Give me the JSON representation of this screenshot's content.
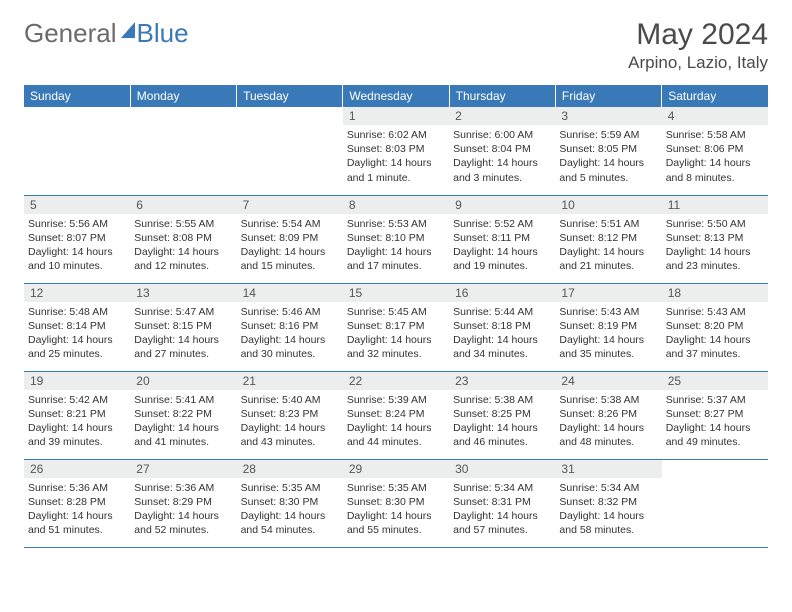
{
  "logo": {
    "general": "General",
    "blue": "Blue"
  },
  "title": "May 2024",
  "location": "Arpino, Lazio, Italy",
  "weekdays": [
    "Sunday",
    "Monday",
    "Tuesday",
    "Wednesday",
    "Thursday",
    "Friday",
    "Saturday"
  ],
  "colors": {
    "header_bg": "#3a79b7",
    "header_text": "#ffffff",
    "daynum_bg": "#eceeee",
    "border": "#3a79b7",
    "logo_gray": "#6b6b6b",
    "logo_blue": "#3a79b7"
  },
  "weeks": [
    [
      null,
      null,
      null,
      {
        "n": "1",
        "sr": "6:02 AM",
        "ss": "8:03 PM",
        "dl": "14 hours and 1 minute."
      },
      {
        "n": "2",
        "sr": "6:00 AM",
        "ss": "8:04 PM",
        "dl": "14 hours and 3 minutes."
      },
      {
        "n": "3",
        "sr": "5:59 AM",
        "ss": "8:05 PM",
        "dl": "14 hours and 5 minutes."
      },
      {
        "n": "4",
        "sr": "5:58 AM",
        "ss": "8:06 PM",
        "dl": "14 hours and 8 minutes."
      }
    ],
    [
      {
        "n": "5",
        "sr": "5:56 AM",
        "ss": "8:07 PM",
        "dl": "14 hours and 10 minutes."
      },
      {
        "n": "6",
        "sr": "5:55 AM",
        "ss": "8:08 PM",
        "dl": "14 hours and 12 minutes."
      },
      {
        "n": "7",
        "sr": "5:54 AM",
        "ss": "8:09 PM",
        "dl": "14 hours and 15 minutes."
      },
      {
        "n": "8",
        "sr": "5:53 AM",
        "ss": "8:10 PM",
        "dl": "14 hours and 17 minutes."
      },
      {
        "n": "9",
        "sr": "5:52 AM",
        "ss": "8:11 PM",
        "dl": "14 hours and 19 minutes."
      },
      {
        "n": "10",
        "sr": "5:51 AM",
        "ss": "8:12 PM",
        "dl": "14 hours and 21 minutes."
      },
      {
        "n": "11",
        "sr": "5:50 AM",
        "ss": "8:13 PM",
        "dl": "14 hours and 23 minutes."
      }
    ],
    [
      {
        "n": "12",
        "sr": "5:48 AM",
        "ss": "8:14 PM",
        "dl": "14 hours and 25 minutes."
      },
      {
        "n": "13",
        "sr": "5:47 AM",
        "ss": "8:15 PM",
        "dl": "14 hours and 27 minutes."
      },
      {
        "n": "14",
        "sr": "5:46 AM",
        "ss": "8:16 PM",
        "dl": "14 hours and 30 minutes."
      },
      {
        "n": "15",
        "sr": "5:45 AM",
        "ss": "8:17 PM",
        "dl": "14 hours and 32 minutes."
      },
      {
        "n": "16",
        "sr": "5:44 AM",
        "ss": "8:18 PM",
        "dl": "14 hours and 34 minutes."
      },
      {
        "n": "17",
        "sr": "5:43 AM",
        "ss": "8:19 PM",
        "dl": "14 hours and 35 minutes."
      },
      {
        "n": "18",
        "sr": "5:43 AM",
        "ss": "8:20 PM",
        "dl": "14 hours and 37 minutes."
      }
    ],
    [
      {
        "n": "19",
        "sr": "5:42 AM",
        "ss": "8:21 PM",
        "dl": "14 hours and 39 minutes."
      },
      {
        "n": "20",
        "sr": "5:41 AM",
        "ss": "8:22 PM",
        "dl": "14 hours and 41 minutes."
      },
      {
        "n": "21",
        "sr": "5:40 AM",
        "ss": "8:23 PM",
        "dl": "14 hours and 43 minutes."
      },
      {
        "n": "22",
        "sr": "5:39 AM",
        "ss": "8:24 PM",
        "dl": "14 hours and 44 minutes."
      },
      {
        "n": "23",
        "sr": "5:38 AM",
        "ss": "8:25 PM",
        "dl": "14 hours and 46 minutes."
      },
      {
        "n": "24",
        "sr": "5:38 AM",
        "ss": "8:26 PM",
        "dl": "14 hours and 48 minutes."
      },
      {
        "n": "25",
        "sr": "5:37 AM",
        "ss": "8:27 PM",
        "dl": "14 hours and 49 minutes."
      }
    ],
    [
      {
        "n": "26",
        "sr": "5:36 AM",
        "ss": "8:28 PM",
        "dl": "14 hours and 51 minutes."
      },
      {
        "n": "27",
        "sr": "5:36 AM",
        "ss": "8:29 PM",
        "dl": "14 hours and 52 minutes."
      },
      {
        "n": "28",
        "sr": "5:35 AM",
        "ss": "8:30 PM",
        "dl": "14 hours and 54 minutes."
      },
      {
        "n": "29",
        "sr": "5:35 AM",
        "ss": "8:30 PM",
        "dl": "14 hours and 55 minutes."
      },
      {
        "n": "30",
        "sr": "5:34 AM",
        "ss": "8:31 PM",
        "dl": "14 hours and 57 minutes."
      },
      {
        "n": "31",
        "sr": "5:34 AM",
        "ss": "8:32 PM",
        "dl": "14 hours and 58 minutes."
      },
      null
    ]
  ],
  "labels": {
    "sunrise": "Sunrise: ",
    "sunset": "Sunset: ",
    "daylight": "Daylight: "
  }
}
